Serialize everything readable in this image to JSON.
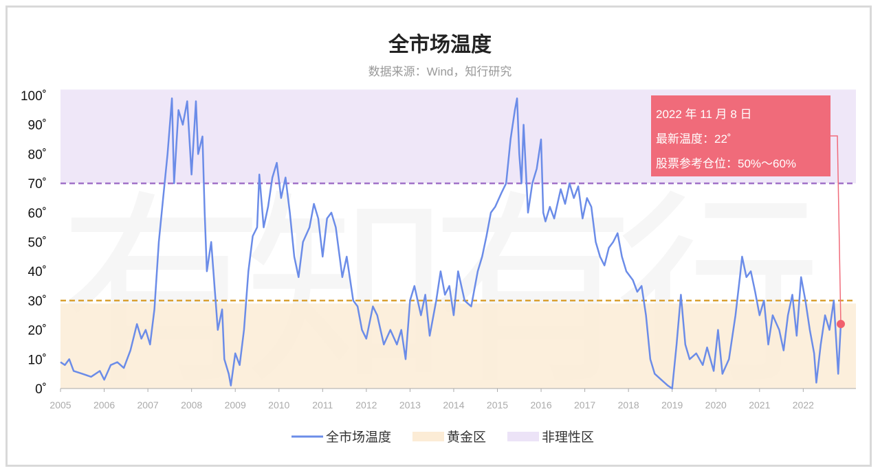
{
  "watermark": "有知有行",
  "colors": {
    "line": "#6b8ce8",
    "golden_zone": "#fcecd6",
    "irrational_zone": "#ece3f7",
    "line70": "#a070c8",
    "line30": "#d9a030",
    "tooltip": "#f06b7a",
    "point": "#f0606e"
  },
  "tooltip": {
    "date": "2022 年 11 月 8 日",
    "temp": "最新温度：22˚",
    "position": "股票参考仓位：50%～60%"
  },
  "chart_data": {
    "type": "line",
    "title": "全市场温度",
    "subtitle": "数据来源：Wind，知行研究",
    "xlim": [
      2005,
      2022.9
    ],
    "ylim": [
      0,
      100
    ],
    "x_ticks": [
      "2005",
      "2006",
      "2007",
      "2008",
      "2009",
      "2010",
      "2011",
      "2012",
      "2013",
      "2014",
      "2015",
      "2016",
      "2017",
      "2018",
      "2019",
      "2020",
      "2021",
      "2022"
    ],
    "y_ticks": [
      "0˚",
      "10˚",
      "20˚",
      "30˚",
      "40˚",
      "50˚",
      "60˚",
      "70˚",
      "80˚",
      "90˚",
      "100˚"
    ],
    "bands": [
      {
        "name": "黄金区",
        "from": 0,
        "to": 29
      },
      {
        "name": "非理性区",
        "from": 70,
        "to": 102
      }
    ],
    "threshold_lines": [
      70,
      30
    ],
    "legend": [
      "全市场温度",
      "黄金区",
      "非理性区"
    ],
    "legend_position": "bottom",
    "series": [
      {
        "name": "全市场温度",
        "points": [
          [
            2005.0,
            9
          ],
          [
            2005.1,
            8
          ],
          [
            2005.2,
            10
          ],
          [
            2005.3,
            6
          ],
          [
            2005.5,
            5
          ],
          [
            2005.7,
            4
          ],
          [
            2005.9,
            6
          ],
          [
            2006.0,
            3
          ],
          [
            2006.15,
            8
          ],
          [
            2006.3,
            9
          ],
          [
            2006.45,
            7
          ],
          [
            2006.6,
            13
          ],
          [
            2006.75,
            22
          ],
          [
            2006.85,
            17
          ],
          [
            2006.95,
            20
          ],
          [
            2007.05,
            15
          ],
          [
            2007.15,
            27
          ],
          [
            2007.25,
            50
          ],
          [
            2007.35,
            65
          ],
          [
            2007.45,
            80
          ],
          [
            2007.55,
            99
          ],
          [
            2007.6,
            70
          ],
          [
            2007.7,
            95
          ],
          [
            2007.8,
            90
          ],
          [
            2007.9,
            98
          ],
          [
            2008.0,
            73
          ],
          [
            2008.1,
            98
          ],
          [
            2008.15,
            80
          ],
          [
            2008.25,
            86
          ],
          [
            2008.3,
            60
          ],
          [
            2008.35,
            40
          ],
          [
            2008.45,
            50
          ],
          [
            2008.55,
            30
          ],
          [
            2008.6,
            20
          ],
          [
            2008.7,
            27
          ],
          [
            2008.75,
            10
          ],
          [
            2008.85,
            5
          ],
          [
            2008.9,
            1
          ],
          [
            2009.0,
            12
          ],
          [
            2009.1,
            8
          ],
          [
            2009.2,
            20
          ],
          [
            2009.3,
            40
          ],
          [
            2009.4,
            52
          ],
          [
            2009.5,
            55
          ],
          [
            2009.55,
            73
          ],
          [
            2009.65,
            55
          ],
          [
            2009.75,
            62
          ],
          [
            2009.85,
            72
          ],
          [
            2009.95,
            77
          ],
          [
            2010.05,
            65
          ],
          [
            2010.15,
            72
          ],
          [
            2010.25,
            60
          ],
          [
            2010.35,
            45
          ],
          [
            2010.45,
            38
          ],
          [
            2010.55,
            50
          ],
          [
            2010.7,
            55
          ],
          [
            2010.8,
            63
          ],
          [
            2010.9,
            58
          ],
          [
            2011.0,
            45
          ],
          [
            2011.1,
            58
          ],
          [
            2011.2,
            60
          ],
          [
            2011.3,
            55
          ],
          [
            2011.45,
            38
          ],
          [
            2011.55,
            45
          ],
          [
            2011.7,
            30
          ],
          [
            2011.8,
            28
          ],
          [
            2011.9,
            20
          ],
          [
            2012.0,
            17
          ],
          [
            2012.15,
            28
          ],
          [
            2012.25,
            25
          ],
          [
            2012.4,
            15
          ],
          [
            2012.55,
            20
          ],
          [
            2012.7,
            15
          ],
          [
            2012.8,
            20
          ],
          [
            2012.9,
            10
          ],
          [
            2013.0,
            30
          ],
          [
            2013.1,
            35
          ],
          [
            2013.25,
            25
          ],
          [
            2013.35,
            32
          ],
          [
            2013.45,
            18
          ],
          [
            2013.6,
            30
          ],
          [
            2013.7,
            40
          ],
          [
            2013.8,
            32
          ],
          [
            2013.9,
            35
          ],
          [
            2014.0,
            25
          ],
          [
            2014.1,
            40
          ],
          [
            2014.25,
            30
          ],
          [
            2014.4,
            28
          ],
          [
            2014.55,
            40
          ],
          [
            2014.65,
            45
          ],
          [
            2014.75,
            52
          ],
          [
            2014.85,
            60
          ],
          [
            2014.95,
            62
          ],
          [
            2015.1,
            67
          ],
          [
            2015.2,
            70
          ],
          [
            2015.3,
            85
          ],
          [
            2015.4,
            95
          ],
          [
            2015.45,
            99
          ],
          [
            2015.5,
            80
          ],
          [
            2015.55,
            70
          ],
          [
            2015.6,
            90
          ],
          [
            2015.7,
            60
          ],
          [
            2015.8,
            70
          ],
          [
            2015.9,
            75
          ],
          [
            2016.0,
            85
          ],
          [
            2016.05,
            60
          ],
          [
            2016.1,
            57
          ],
          [
            2016.2,
            62
          ],
          [
            2016.3,
            58
          ],
          [
            2016.45,
            68
          ],
          [
            2016.55,
            63
          ],
          [
            2016.65,
            70
          ],
          [
            2016.75,
            65
          ],
          [
            2016.85,
            69
          ],
          [
            2016.95,
            58
          ],
          [
            2017.05,
            65
          ],
          [
            2017.15,
            62
          ],
          [
            2017.25,
            50
          ],
          [
            2017.35,
            45
          ],
          [
            2017.45,
            42
          ],
          [
            2017.55,
            48
          ],
          [
            2017.65,
            50
          ],
          [
            2017.75,
            53
          ],
          [
            2017.85,
            45
          ],
          [
            2017.95,
            40
          ],
          [
            2018.1,
            37
          ],
          [
            2018.2,
            33
          ],
          [
            2018.3,
            35
          ],
          [
            2018.4,
            25
          ],
          [
            2018.5,
            10
          ],
          [
            2018.6,
            5
          ],
          [
            2018.75,
            3
          ],
          [
            2018.9,
            1
          ],
          [
            2019.0,
            0
          ],
          [
            2019.1,
            15
          ],
          [
            2019.2,
            32
          ],
          [
            2019.3,
            15
          ],
          [
            2019.4,
            10
          ],
          [
            2019.55,
            12
          ],
          [
            2019.7,
            8
          ],
          [
            2019.8,
            14
          ],
          [
            2019.95,
            6
          ],
          [
            2020.05,
            20
          ],
          [
            2020.15,
            5
          ],
          [
            2020.3,
            10
          ],
          [
            2020.45,
            25
          ],
          [
            2020.55,
            38
          ],
          [
            2020.6,
            45
          ],
          [
            2020.7,
            38
          ],
          [
            2020.8,
            40
          ],
          [
            2020.9,
            33
          ],
          [
            2021.0,
            25
          ],
          [
            2021.1,
            30
          ],
          [
            2021.2,
            15
          ],
          [
            2021.3,
            25
          ],
          [
            2021.45,
            20
          ],
          [
            2021.55,
            13
          ],
          [
            2021.65,
            25
          ],
          [
            2021.75,
            32
          ],
          [
            2021.85,
            18
          ],
          [
            2021.95,
            38
          ],
          [
            2022.05,
            30
          ],
          [
            2022.15,
            20
          ],
          [
            2022.25,
            12
          ],
          [
            2022.3,
            2
          ],
          [
            2022.4,
            15
          ],
          [
            2022.5,
            25
          ],
          [
            2022.6,
            20
          ],
          [
            2022.7,
            30
          ],
          [
            2022.8,
            5
          ],
          [
            2022.86,
            22
          ]
        ]
      }
    ],
    "highlight_point": [
      2022.86,
      22
    ]
  }
}
